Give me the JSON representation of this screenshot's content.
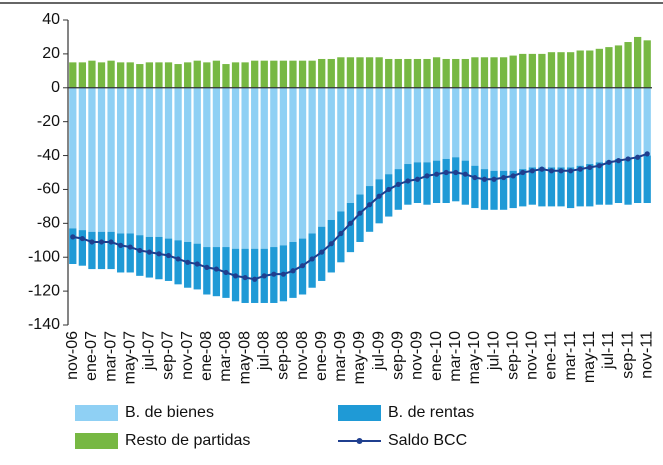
{
  "chart_data": {
    "type": "bar",
    "categories": [
      "nov-06",
      null,
      "ene-07",
      null,
      "mar-07",
      null,
      "may-07",
      null,
      "jul-07",
      null,
      "sep-07",
      null,
      "nov-07",
      null,
      "ene-08",
      null,
      "mar-08",
      null,
      "may-08",
      null,
      "jul-08",
      null,
      "sep-08",
      null,
      "nov-08",
      null,
      "ene-09",
      null,
      "mar-09",
      null,
      "may-09",
      null,
      "jul-09",
      null,
      "sep-09",
      null,
      "nov-09",
      null,
      "ene-10",
      null,
      "mar-10",
      null,
      "may-10",
      null,
      "jul-10",
      null,
      "sep-10",
      null,
      "nov-10",
      null,
      "ene-11",
      null,
      "mar-11",
      null,
      "may-11",
      null,
      "jul-11",
      null,
      "sep-11",
      null,
      "nov-11"
    ],
    "series": [
      {
        "name": "B. de bienes",
        "color": "#8fd0f4",
        "values": [
          -83,
          -84,
          -85,
          -85,
          -85,
          -86,
          -86,
          -87,
          -88,
          -88,
          -89,
          -90,
          -91,
          -92,
          -94,
          -94,
          -94,
          -95,
          -95,
          -95,
          -95,
          -94,
          -93,
          -91,
          -89,
          -86,
          -82,
          -78,
          -73,
          -68,
          -63,
          -58,
          -54,
          -51,
          -48,
          -45,
          -44,
          -44,
          -43,
          -42,
          -41,
          -43,
          -46,
          -48,
          -49,
          -49,
          -49,
          -48,
          -47,
          -47,
          -47,
          -47,
          -47,
          -46,
          -45,
          -44,
          -43,
          -42,
          -42,
          -41,
          -40
        ]
      },
      {
        "name": "B. de rentas",
        "color": "#1f9ad6",
        "values": [
          -21,
          -21,
          -22,
          -22,
          -22,
          -23,
          -23,
          -24,
          -24,
          -25,
          -25,
          -26,
          -27,
          -27,
          -28,
          -29,
          -30,
          -31,
          -32,
          -32,
          -32,
          -33,
          -33,
          -33,
          -33,
          -32,
          -32,
          -31,
          -30,
          -29,
          -28,
          -27,
          -26,
          -25,
          -24,
          -24,
          -24,
          -25,
          -25,
          -26,
          -26,
          -26,
          -25,
          -24,
          -23,
          -23,
          -22,
          -22,
          -22,
          -23,
          -23,
          -23,
          -24,
          -24,
          -25,
          -25,
          -26,
          -26,
          -27,
          -27,
          -28
        ]
      },
      {
        "name": "Resto de partidas",
        "color": "#77b843",
        "values": [
          15,
          15,
          16,
          15,
          16,
          15,
          15,
          14,
          15,
          15,
          15,
          14,
          15,
          16,
          15,
          16,
          14,
          15,
          15,
          16,
          16,
          16,
          16,
          16,
          16,
          16,
          17,
          17,
          18,
          18,
          18,
          18,
          18,
          17,
          17,
          17,
          17,
          17,
          18,
          17,
          17,
          17,
          18,
          18,
          18,
          18,
          19,
          20,
          20,
          20,
          21,
          21,
          21,
          22,
          22,
          23,
          24,
          25,
          27,
          30,
          28
        ]
      },
      {
        "name": "Saldo BCC",
        "type": "line",
        "color": "#1f3f8f",
        "values": [
          -88,
          -89,
          -91,
          -91,
          -91,
          -93,
          -94,
          -96,
          -97,
          -98,
          -99,
          -101,
          -103,
          -104,
          -106,
          -107,
          -109,
          -111,
          -112,
          -113,
          -111,
          -110,
          -110,
          -108,
          -105,
          -101,
          -97,
          -92,
          -86,
          -80,
          -74,
          -69,
          -64,
          -60,
          -57,
          -55,
          -54,
          -52,
          -51,
          -50,
          -50,
          -51,
          -53,
          -54,
          -54,
          -53,
          -52,
          -50,
          -49,
          -48,
          -49,
          -49,
          -49,
          -48,
          -47,
          -46,
          -44,
          -43,
          -42,
          -41,
          -39
        ]
      }
    ],
    "ylim": [
      -140,
      40
    ],
    "yticks": [
      -140,
      -120,
      -100,
      -80,
      -60,
      -40,
      -20,
      0,
      20,
      40
    ]
  }
}
